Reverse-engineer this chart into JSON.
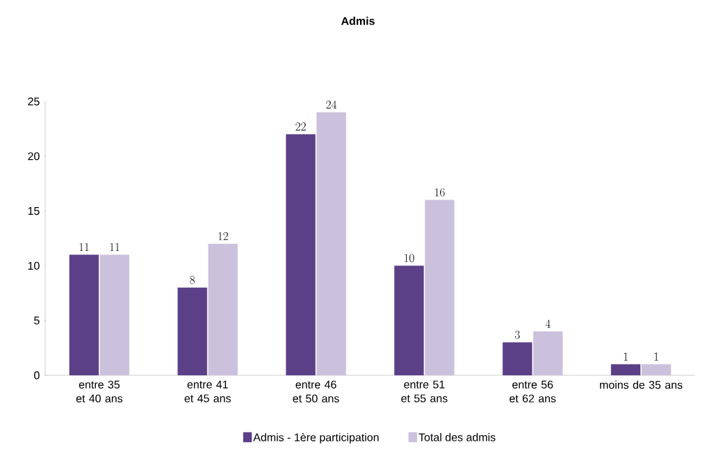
{
  "chart_data": {
    "type": "bar",
    "title": "Admis",
    "categories": [
      "entre 35 et 40 ans",
      "entre 41 et 45 ans",
      "entre 46 et 50 ans",
      "entre 51 et 55 ans",
      "entre 56 et 62 ans",
      "moins de 35 ans"
    ],
    "series": [
      {
        "name": "Admis - 1ère participation",
        "color": "#5b3f87",
        "values": [
          11,
          8,
          22,
          10,
          3,
          1
        ]
      },
      {
        "name": "Total des admis",
        "color": "#ccc1dc",
        "values": [
          11,
          12,
          24,
          16,
          4,
          1
        ]
      }
    ],
    "ylim": [
      0,
      25
    ],
    "yticks": [
      0,
      5,
      10,
      15,
      20,
      25
    ],
    "data_labels": true,
    "legend": "bottom",
    "grid": false
  }
}
